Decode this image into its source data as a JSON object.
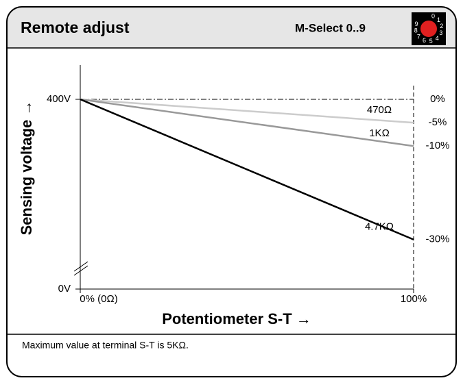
{
  "chart_data": {
    "type": "line",
    "title": "Remote adjust",
    "subtitle": "M-Select 0..9",
    "dial_digits": [
      "0",
      "1",
      "2",
      "3",
      "4",
      "5",
      "6",
      "7",
      "8",
      "9"
    ],
    "y_label": "Sensing voltage →",
    "x_label": "Potentiometer S-T →",
    "note": "Maximum value at terminal S-T is 5KΩ.",
    "x": [
      0,
      100
    ],
    "xlim": [
      0,
      100
    ],
    "xticks": [
      {
        "value": 0,
        "label": "0% (0Ω)"
      },
      {
        "value": 100,
        "label": "100%"
      }
    ],
    "ylim": [
      -40,
      0
    ],
    "yticks": [
      {
        "value": 0,
        "label": "0%"
      },
      {
        "value": -5,
        "label": "-5%"
      },
      {
        "value": -10,
        "label": "-10%"
      },
      {
        "value": -30,
        "label": "-30%"
      }
    ],
    "yticks_left": [
      {
        "value": 0,
        "label": "400V"
      },
      {
        "value": -40,
        "label": "0V"
      }
    ],
    "series": [
      {
        "name": "470Ω",
        "color": "#cccccc",
        "values": [
          0,
          -5
        ]
      },
      {
        "name": "1KΩ",
        "color": "#999999",
        "values": [
          0,
          -10
        ]
      },
      {
        "name": "4.7KΩ",
        "color": "#000000",
        "values": [
          0,
          -30
        ]
      }
    ]
  }
}
